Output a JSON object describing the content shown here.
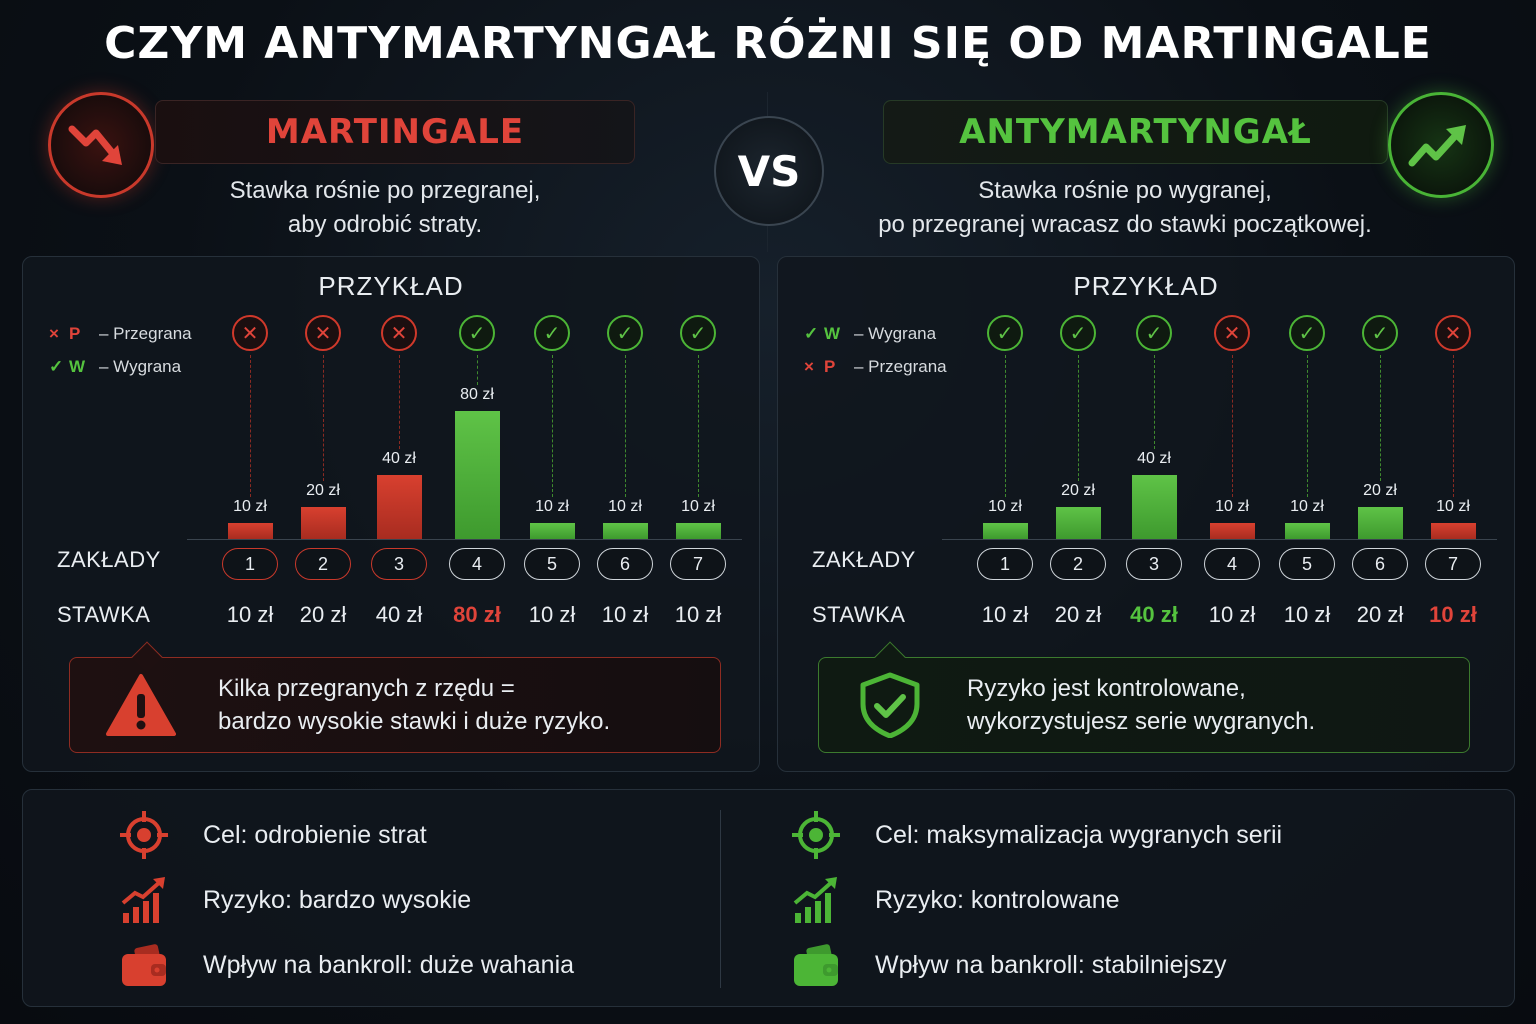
{
  "title": "CZYM ANTYMARTYNGAŁ RÓŻNI SIĘ OD MARTINGALE",
  "vs": "VS",
  "colors": {
    "loss": "#e0443a",
    "win": "#55c33f"
  },
  "left": {
    "name": "MARTINGALE",
    "icon": "trend-down-icon",
    "desc_line1": "Stawka rośnie po przegranej,",
    "desc_line2": "aby odrobić straty.",
    "example_title": "PRZYKŁAD",
    "legend": [
      {
        "symbol": "×",
        "code": "P",
        "text": "– Przegrana",
        "kind": "loss"
      },
      {
        "symbol": "✓",
        "code": "W",
        "text": "– Wygrana",
        "kind": "win"
      }
    ],
    "row_bets": "ZAKŁADY",
    "row_stake": "STAWKA",
    "note_line1": "Kilka przegranych z rzędu =",
    "note_line2": "bardzo wysokie stawki i duże ryzyko.",
    "note_icon": "warning-icon"
  },
  "right": {
    "name": "ANTYMARTYNGAŁ",
    "icon": "trend-up-icon",
    "desc_line1": "Stawka rośnie po wygranej,",
    "desc_line2": "po przegranej wracasz do stawki początkowej.",
    "example_title": "PRZYKŁAD",
    "legend": [
      {
        "symbol": "✓",
        "code": "W",
        "text": "– Wygrana",
        "kind": "win"
      },
      {
        "symbol": "×",
        "code": "P",
        "text": "– Przegrana",
        "kind": "loss"
      }
    ],
    "row_bets": "ZAKŁADY",
    "row_stake": "STAWKA",
    "note_line1": "Ryzyko jest kontrolowane,",
    "note_line2": "wykorzystujesz serie wygranych.",
    "note_icon": "shield-check-icon"
  },
  "chart_data": [
    {
      "type": "bar",
      "categories": [
        "1",
        "2",
        "3",
        "4",
        "5",
        "6",
        "7"
      ],
      "values": [
        10,
        20,
        40,
        80,
        10,
        10,
        10
      ],
      "value_labels": [
        "10 zł",
        "20 zł",
        "40 zł",
        "80 zł",
        "10 zł",
        "10 zł",
        "10 zł"
      ],
      "stake_labels": [
        "10 zł",
        "20 zł",
        "40 zł",
        "80 zł",
        "10 zł",
        "10 zł",
        "10 zł"
      ],
      "results": [
        "loss",
        "loss",
        "loss",
        "win",
        "win",
        "win",
        "win"
      ],
      "highlight_index": 3,
      "highlight_color": "#e0443a",
      "ylim": [
        0,
        80
      ]
    },
    {
      "type": "bar",
      "categories": [
        "1",
        "2",
        "3",
        "4",
        "5",
        "6",
        "7"
      ],
      "values": [
        10,
        20,
        40,
        10,
        10,
        20,
        10
      ],
      "value_labels": [
        "10 zł",
        "20 zł",
        "40 zł",
        "10 zł",
        "10 zł",
        "20 zł",
        "10 zł"
      ],
      "stake_labels": [
        "10 zł",
        "20 zł",
        "40 zł",
        "10 zł",
        "10 zł",
        "20 zł",
        "10 zł"
      ],
      "results": [
        "win",
        "win",
        "win",
        "loss",
        "win",
        "win",
        "loss"
      ],
      "highlight_indices": [
        2,
        6
      ],
      "highlight_colors": [
        "#55c33f",
        "#e0443a"
      ],
      "ylim": [
        0,
        80
      ]
    }
  ],
  "features": {
    "left": [
      {
        "icon": "target-icon",
        "text": "Cel: odrobienie strat"
      },
      {
        "icon": "bar-chart-up-icon",
        "text": "Ryzyko: bardzo wysokie"
      },
      {
        "icon": "wallet-icon",
        "text": "Wpływ na bankroll: duże wahania"
      }
    ],
    "right": [
      {
        "icon": "target-icon",
        "text": "Cel: maksymalizacja wygranych serii"
      },
      {
        "icon": "bar-chart-up-icon",
        "text": "Ryzyko: kontrolowane"
      },
      {
        "icon": "wallet-icon",
        "text": "Wpływ na bankroll: stabilniejszy"
      }
    ]
  }
}
